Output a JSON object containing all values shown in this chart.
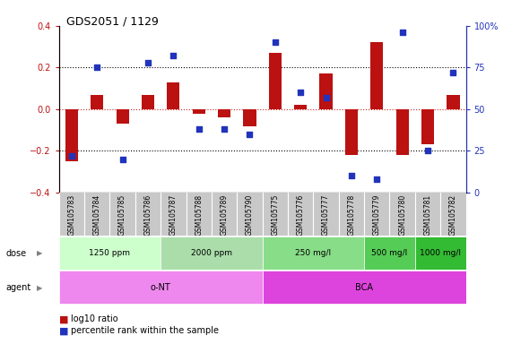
{
  "title": "GDS2051 / 1129",
  "samples": [
    "GSM105783",
    "GSM105784",
    "GSM105785",
    "GSM105786",
    "GSM105787",
    "GSM105788",
    "GSM105789",
    "GSM105790",
    "GSM105775",
    "GSM105776",
    "GSM105777",
    "GSM105778",
    "GSM105779",
    "GSM105780",
    "GSM105781",
    "GSM105782"
  ],
  "log10_ratio": [
    -0.25,
    0.07,
    -0.07,
    0.07,
    0.13,
    -0.02,
    -0.04,
    -0.08,
    0.27,
    0.02,
    0.17,
    -0.22,
    0.32,
    -0.22,
    -0.17,
    0.07
  ],
  "percentile": [
    22,
    75,
    20,
    78,
    82,
    38,
    38,
    35,
    90,
    60,
    57,
    10,
    8,
    96,
    25,
    72
  ],
  "ylim_left": [
    -0.4,
    0.4
  ],
  "ylim_right": [
    0,
    100
  ],
  "bar_color": "#bb1111",
  "dot_color": "#2233bb",
  "dose_groups": [
    {
      "label": "1250 ppm",
      "start": 0,
      "end": 4,
      "color": "#ccffcc"
    },
    {
      "label": "2000 ppm",
      "start": 4,
      "end": 8,
      "color": "#aaddaa"
    },
    {
      "label": "250 mg/l",
      "start": 8,
      "end": 12,
      "color": "#88dd88"
    },
    {
      "label": "500 mg/l",
      "start": 12,
      "end": 14,
      "color": "#55cc55"
    },
    {
      "label": "1000 mg/l",
      "start": 14,
      "end": 16,
      "color": "#33bb33"
    }
  ],
  "agent_groups": [
    {
      "label": "o-NT",
      "start": 0,
      "end": 8,
      "color": "#ee88ee"
    },
    {
      "label": "BCA",
      "start": 8,
      "end": 16,
      "color": "#dd44dd"
    }
  ],
  "legend": [
    {
      "label": "log10 ratio",
      "color": "#bb1111"
    },
    {
      "label": "percentile rank within the sample",
      "color": "#2233bb"
    }
  ],
  "background_color": "#ffffff",
  "sample_label_bg": "#c8c8c8",
  "dose_label": "dose",
  "agent_label": "agent"
}
